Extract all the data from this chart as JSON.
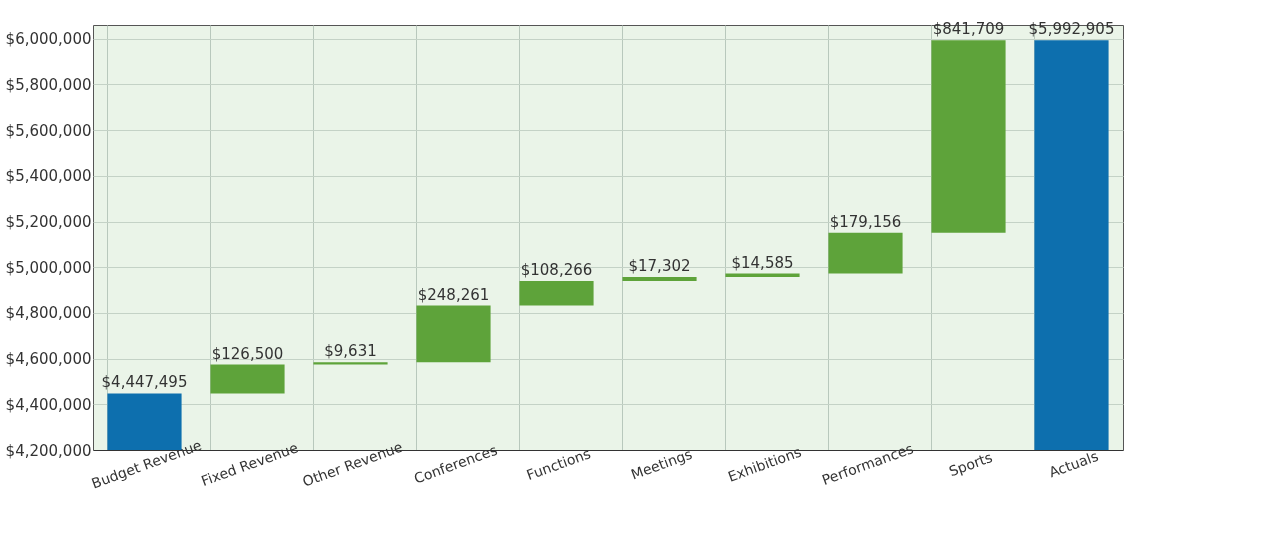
{
  "chart_data": {
    "type": "bar",
    "categories": [
      "Budget Revenue",
      "Fixed Revenue",
      "Other Revenue",
      "Conferences",
      "Functions",
      "Meetings",
      "Exhibitions",
      "Performances",
      "Sports",
      "Actuals"
    ],
    "values": [
      4447495,
      126500,
      9631,
      248261,
      108266,
      17302,
      14585,
      179156,
      841709,
      5992905
    ],
    "base": [
      null,
      4447495,
      4573995,
      4583626,
      4831887,
      4940153,
      4957455,
      4972040,
      5151196,
      null
    ],
    "colors": [
      "#0d6fae",
      "#5ea33a",
      "#5ea33a",
      "#5ea33a",
      "#5ea33a",
      "#5ea33a",
      "#5ea33a",
      "#5ea33a",
      "#5ea33a",
      "#0d6fae"
    ],
    "value_labels": [
      "$4,447,495",
      "$126,500",
      "$9,631",
      "$248,261",
      "$108,266",
      "$17,302",
      "$14,585",
      "$179,156",
      "$841,709",
      "$5,992,905"
    ],
    "ylim": [
      4200000,
      6060000
    ],
    "yticks": [
      {
        "value": 4200000,
        "label": "$4,200,000"
      },
      {
        "value": 4400000,
        "label": "$4,400,000"
      },
      {
        "value": 4600000,
        "label": "$4,600,000"
      },
      {
        "value": 4800000,
        "label": "$4,800,000"
      },
      {
        "value": 5000000,
        "label": "$5,000,000"
      },
      {
        "value": 5200000,
        "label": "$5,200,000"
      },
      {
        "value": 5400000,
        "label": "$5,400,000"
      },
      {
        "value": 5600000,
        "label": "$5,600,000"
      },
      {
        "value": 5800000,
        "label": "$5,800,000"
      },
      {
        "value": 6000000,
        "label": "$6,000,000"
      }
    ],
    "grid": true
  }
}
